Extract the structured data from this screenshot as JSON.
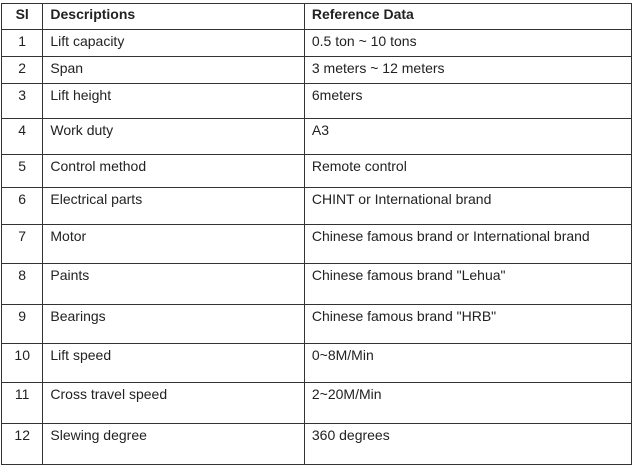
{
  "table": {
    "headers": [
      "Sl",
      "Descriptions",
      "Reference Data"
    ],
    "rows": [
      [
        "1",
        "Lift capacity",
        "0.5 ton ~ 10 tons"
      ],
      [
        "2",
        "Span",
        "3 meters ~ 12 meters"
      ],
      [
        "3",
        "Lift height",
        "6meters"
      ],
      [
        "4",
        "Work duty",
        "A3"
      ],
      [
        "5",
        "Control method",
        "Remote control"
      ],
      [
        "6",
        "Electrical parts",
        "CHINT or International brand"
      ],
      [
        "7",
        "Motor",
        "Chinese famous brand or International brand"
      ],
      [
        "8",
        "Paints",
        "Chinese famous brand \"Lehua\""
      ],
      [
        "9",
        "Bearings",
        "Chinese famous brand \"HRB\""
      ],
      [
        "10",
        "Lift speed",
        "0~8M/Min"
      ],
      [
        "11",
        "Cross travel speed",
        "2~20M/Min"
      ],
      [
        "12",
        "Slewing degree",
        "360 degrees"
      ]
    ]
  }
}
